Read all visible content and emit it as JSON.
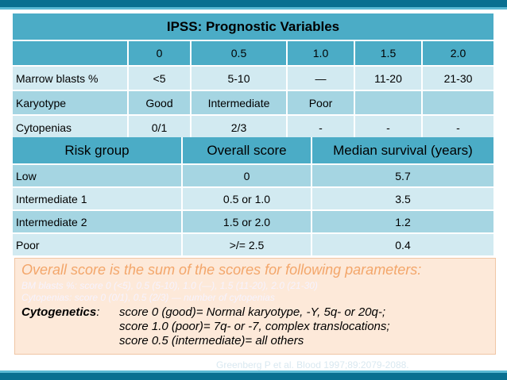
{
  "table1": {
    "title": "IPSS: Prognostic Variables",
    "headers": [
      "",
      "0",
      "0.5",
      "1.0",
      "1.5",
      "2.0"
    ],
    "rows": [
      [
        "Marrow blasts %",
        "<5",
        "5-10",
        "—",
        "11-20",
        "21-30"
      ],
      [
        "Karyotype",
        "Good",
        "Intermediate",
        "Poor",
        "",
        ""
      ],
      [
        "Cytopenias",
        "0/1",
        "2/3",
        "-",
        "-",
        "-"
      ]
    ]
  },
  "table2": {
    "headers": [
      "Risk group",
      "Overall score",
      "Median survival (years)"
    ],
    "rows": [
      [
        "Low",
        "0",
        "5.7"
      ],
      [
        "Intermediate 1",
        "0.5 or 1.0",
        "3.5"
      ],
      [
        "Intermediate 2",
        "1.5 or 2.0",
        "1.2"
      ],
      [
        "Poor",
        ">/= 2.5",
        "0.4"
      ]
    ]
  },
  "notes": {
    "heading": "Overall score is the sum of the scores for following parameters:",
    "blasts_line": "BM blasts %: score 0 (<5), 0.5 (5-10), 1.0 (—), 1.5 (11-20), 2.0 (21-30)",
    "cytopenias_line": "Cytopenias: score 0 (0/1), 0.5 (2/3) — number of cytopenias",
    "cyto_label": "Cytogenetics",
    "cyto_colon": ":",
    "cyto_lines": [
      "score 0 (good)= Normal karyotype, -Y, 5q- or 20q-;",
      "score 1.0 (poor)= 7q- or -7, complex translocations;",
      "score 0.5 (intermediate)= all others"
    ]
  },
  "citation": "Greenberg P et al. Blood 1997;89:2079-2088."
}
